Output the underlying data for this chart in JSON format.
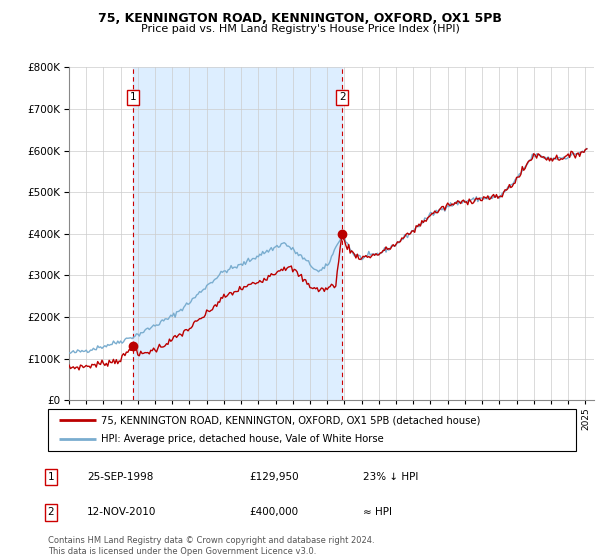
{
  "title1": "75, KENNINGTON ROAD, KENNINGTON, OXFORD, OX1 5PB",
  "title2": "Price paid vs. HM Land Registry's House Price Index (HPI)",
  "legend_line1": "75, KENNINGTON ROAD, KENNINGTON, OXFORD, OX1 5PB (detached house)",
  "legend_line2": "HPI: Average price, detached house, Vale of White Horse",
  "sale1_date": "25-SEP-1998",
  "sale1_price": "£129,950",
  "sale1_hpi": "23% ↓ HPI",
  "sale2_date": "12-NOV-2010",
  "sale2_price": "£400,000",
  "sale2_hpi": "≈ HPI",
  "footer": "Contains HM Land Registry data © Crown copyright and database right 2024.\nThis data is licensed under the Open Government Licence v3.0.",
  "red_color": "#bb0000",
  "blue_color": "#7aadcf",
  "shade_color": "#ddeeff",
  "dashed_color": "#cc0000",
  "ylim": [
    0,
    800000
  ],
  "xlim_start": 1995.0,
  "xlim_end": 2025.5,
  "sale1_year": 1998.73,
  "sale1_value": 129950,
  "sale2_year": 2010.87,
  "sale2_value": 400000
}
